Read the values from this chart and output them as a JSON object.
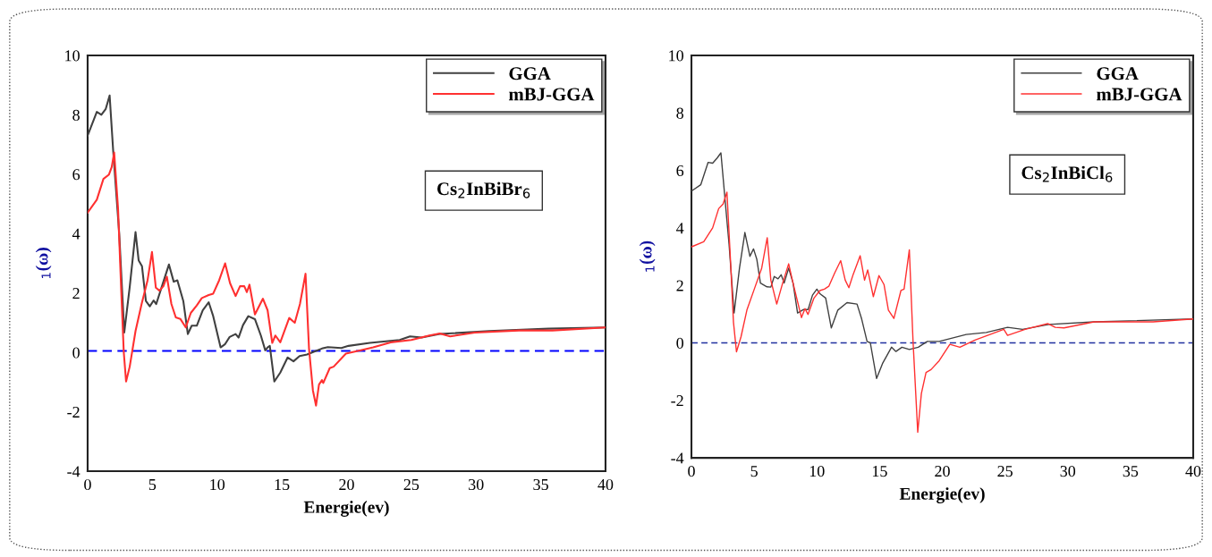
{
  "chart_data": [
    {
      "type": "line",
      "xlabel": "Energie(ev)",
      "ylabel": "$_{1}$(ω)",
      "xlim": [
        0,
        40
      ],
      "ylim": [
        -4,
        10
      ],
      "xticks": [
        0,
        5,
        10,
        15,
        20,
        25,
        30,
        35,
        40
      ],
      "yticks": [
        -4,
        -2,
        0,
        2,
        4,
        6,
        8,
        10
      ],
      "grid": false,
      "legend": "top right",
      "line_style": "solid",
      "marker": "none",
      "annotations": [
        "Cs$_{2}$InBiBr$_{6}$"
      ],
      "ref_lines": [
        {
          "axis": "y",
          "value": 0.05,
          "label": null,
          "color": "#0000ff",
          "line_style": "dashed"
        }
      ],
      "series": [
        {
          "name": "GGA",
          "color": "#404040",
          "x": [
            0,
            0.71,
            1.06,
            1.4,
            1.7,
            1.98,
            2.44,
            2.83,
            3.25,
            3.7,
            3.94,
            4.2,
            4.5,
            4.8,
            5.1,
            5.3,
            5.78,
            6.28,
            6.65,
            6.93,
            7.39,
            7.74,
            8.04,
            8.43,
            8.89,
            9.35,
            9.7,
            10.27,
            10.6,
            10.97,
            11.43,
            11.66,
            12.0,
            12.41,
            12.92,
            13.38,
            13.72,
            13.9,
            14.07,
            14.42,
            14.88,
            15.45,
            15.9,
            16.37,
            16.95,
            17.5,
            18.1,
            18.55,
            19.6,
            20.15,
            21.8,
            24.1,
            24.9,
            25.8,
            27.2,
            31,
            35.6,
            40
          ],
          "values": [
            7.3,
            8.1,
            8.0,
            8.2,
            8.65,
            6.75,
            4.0,
            0.67,
            2.2,
            4.05,
            3.1,
            2.9,
            1.73,
            1.55,
            1.75,
            1.63,
            2.28,
            2.96,
            2.38,
            2.43,
            1.73,
            0.62,
            0.9,
            0.9,
            1.42,
            1.69,
            1.22,
            0.17,
            0.27,
            0.52,
            0.62,
            0.5,
            0.92,
            1.22,
            1.12,
            0.57,
            0.07,
            0.17,
            0.22,
            -0.98,
            -0.68,
            -0.17,
            -0.3,
            -0.12,
            -0.07,
            0.03,
            0.13,
            0.18,
            0.15,
            0.22,
            0.32,
            0.42,
            0.54,
            0.5,
            0.62,
            0.72,
            0.8,
            0.84
          ]
        },
        {
          "name": "mBJ-GGA",
          "color": "#ff3030",
          "x": [
            0,
            0.71,
            1.22,
            1.65,
            1.86,
            2.05,
            2.35,
            2.6,
            2.79,
            2.97,
            3.25,
            3.7,
            4.17,
            4.63,
            4.97,
            5.27,
            5.55,
            5.85,
            6.12,
            6.47,
            6.81,
            7.16,
            7.58,
            7.97,
            8.43,
            8.82,
            9.35,
            9.7,
            10.16,
            10.62,
            11.0,
            11.43,
            11.77,
            12.1,
            12.3,
            12.5,
            12.92,
            13.54,
            13.9,
            14.26,
            14.5,
            14.88,
            15.57,
            16.0,
            16.4,
            16.83,
            17.1,
            17.4,
            17.64,
            17.87,
            18.1,
            18.2,
            18.7,
            19.0,
            19.95,
            21.1,
            22.05,
            23.4,
            25.0,
            26.4,
            27.2,
            28.0,
            29.9,
            33.3,
            35.9,
            40
          ],
          "values": [
            4.71,
            5.14,
            5.84,
            5.99,
            6.24,
            6.73,
            4.84,
            2.03,
            0.02,
            -0.98,
            -0.48,
            0.72,
            1.63,
            2.43,
            3.38,
            2.18,
            2.08,
            2.23,
            2.55,
            1.63,
            1.18,
            1.13,
            0.84,
            1.33,
            1.58,
            1.83,
            1.93,
            1.98,
            2.43,
            3.0,
            2.33,
            1.9,
            2.23,
            2.23,
            2.03,
            2.28,
            1.28,
            1.81,
            1.42,
            0.32,
            0.57,
            0.34,
            1.16,
            1.0,
            1.63,
            2.65,
            0.12,
            -1.28,
            -1.79,
            -1.08,
            -0.93,
            -1.03,
            -0.53,
            -0.48,
            -0.04,
            0.07,
            0.17,
            0.34,
            0.42,
            0.57,
            0.64,
            0.54,
            0.67,
            0.74,
            0.74,
            0.84
          ]
        }
      ]
    },
    {
      "type": "line",
      "xlabel": "Energie(ev)",
      "ylabel": "$_{1}$(ω)",
      "xlim": [
        0,
        40
      ],
      "ylim": [
        -4,
        10
      ],
      "xticks": [
        0,
        5,
        10,
        15,
        20,
        25,
        30,
        35,
        40
      ],
      "yticks": [
        -4,
        -2,
        0,
        2,
        4,
        6,
        8,
        10
      ],
      "grid": false,
      "legend": "top right",
      "line_style": "solid",
      "marker": "none",
      "annotations": [
        "Cs$_{2}$InBiCl$_{6}$"
      ],
      "ref_lines": [
        {
          "axis": "y",
          "value": 0,
          "label": null,
          "color": "#2030a0",
          "line_style": "dashed"
        }
      ],
      "series": [
        {
          "name": "GGA",
          "color": "#404040",
          "x": [
            0,
            0.74,
            1.33,
            1.69,
            2.05,
            2.35,
            2.64,
            3.0,
            3.4,
            3.83,
            4.26,
            4.66,
            4.95,
            5.21,
            5.5,
            6.02,
            6.33,
            6.6,
            6.9,
            7.15,
            7.39,
            7.75,
            8.1,
            8.46,
            8.94,
            9.3,
            9.65,
            10.0,
            10.24,
            10.7,
            11.15,
            11.67,
            12.4,
            13.2,
            13.57,
            14.0,
            14.26,
            14.76,
            15.23,
            15.95,
            16.3,
            16.78,
            17.37,
            18.08,
            18.8,
            19.75,
            21.9,
            23.5,
            25.2,
            26.4,
            28.5,
            32.1,
            40
          ],
          "values": [
            5.28,
            5.5,
            6.28,
            6.25,
            6.43,
            6.61,
            5.18,
            3.42,
            1.04,
            2.6,
            3.84,
            3.01,
            3.27,
            2.91,
            2.08,
            1.95,
            1.94,
            2.31,
            2.23,
            2.37,
            2.08,
            2.6,
            2.08,
            1.04,
            1.16,
            1.16,
            1.66,
            1.87,
            1.71,
            1.56,
            0.52,
            1.14,
            1.4,
            1.35,
            0.83,
            0.05,
            0.0,
            -1.24,
            -0.72,
            -0.15,
            -0.3,
            -0.15,
            -0.23,
            -0.15,
            0.05,
            0.05,
            0.29,
            0.36,
            0.54,
            0.47,
            0.64,
            0.73,
            0.83
          ]
        },
        {
          "name": "mBJ-GGA",
          "color": "#ff3030",
          "x": [
            0,
            0.98,
            1.69,
            2.17,
            2.52,
            2.83,
            3.12,
            3.35,
            3.59,
            3.95,
            4.42,
            5.01,
            5.6,
            6.04,
            6.33,
            6.8,
            7.27,
            7.75,
            8.1,
            8.39,
            8.77,
            9.05,
            9.29,
            9.77,
            10.24,
            10.6,
            10.95,
            11.43,
            11.9,
            12.26,
            12.55,
            12.9,
            13.45,
            13.8,
            14.05,
            14.5,
            14.95,
            15.35,
            15.7,
            16.14,
            16.7,
            16.95,
            17.37,
            17.66,
            18.04,
            18.33,
            18.7,
            19.1,
            19.75,
            20.6,
            21.4,
            22.6,
            24.9,
            25.2,
            26.6,
            28.4,
            29.0,
            29.7,
            32.1,
            36.8,
            40
          ],
          "values": [
            3.34,
            3.52,
            4.0,
            4.67,
            4.83,
            5.24,
            2.8,
            0.72,
            -0.31,
            0.21,
            1.14,
            1.87,
            2.6,
            3.66,
            2.18,
            1.35,
            2.08,
            2.75,
            2.08,
            1.56,
            0.88,
            1.19,
            0.99,
            1.56,
            1.82,
            1.87,
            1.97,
            2.44,
            2.86,
            2.18,
            1.92,
            2.39,
            3.03,
            2.18,
            2.54,
            1.61,
            2.34,
            2.03,
            1.14,
            0.85,
            1.82,
            1.87,
            3.24,
            0.1,
            -3.11,
            -1.76,
            -1.03,
            -0.93,
            -0.62,
            -0.05,
            -0.15,
            0.1,
            0.47,
            0.26,
            0.47,
            0.67,
            0.54,
            0.52,
            0.73,
            0.73,
            0.83
          ]
        }
      ]
    }
  ]
}
